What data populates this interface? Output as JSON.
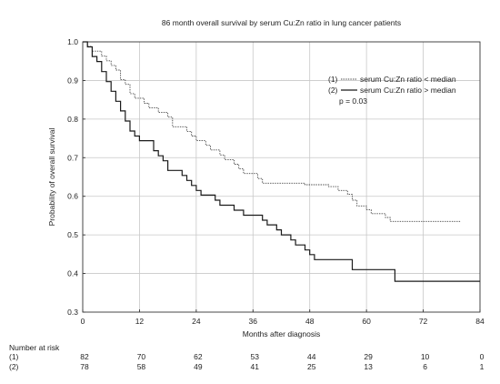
{
  "chart_data": {
    "type": "line",
    "subtype": "kaplan-meier",
    "title": "86 month overall survival by serum Cu:Zn ratio in lung cancer patients",
    "xlabel": "Months after diagnosis",
    "ylabel": "Probability of overall survival",
    "xlim": [
      0,
      84
    ],
    "ylim": [
      0.3,
      1.0
    ],
    "xticks": [
      0,
      12,
      24,
      36,
      48,
      60,
      72,
      84
    ],
    "xtick_labels": [
      "0",
      "12",
      "24",
      "36",
      "48",
      "60",
      "72",
      "84"
    ],
    "yticks": [
      0.3,
      0.4,
      0.5,
      0.6,
      0.7,
      0.8,
      0.9,
      1.0
    ],
    "ytick_labels": [
      "0.3",
      "0.4",
      "0.5",
      "0.6",
      "0.7",
      "0.8",
      "0.9",
      "1.0"
    ],
    "grid": true,
    "legend_position": "top-right",
    "p_value_text": "p = 0.03",
    "series": [
      {
        "name": "serum Cu:Zn ratio < median",
        "key": "(1)",
        "style": "dotted",
        "color": "#444444",
        "points": [
          [
            0,
            1.0
          ],
          [
            1,
            0.988
          ],
          [
            2,
            0.976
          ],
          [
            3,
            0.976
          ],
          [
            4,
            0.963
          ],
          [
            5,
            0.951
          ],
          [
            6,
            0.939
          ],
          [
            7,
            0.927
          ],
          [
            8,
            0.902
          ],
          [
            9,
            0.89
          ],
          [
            10,
            0.866
          ],
          [
            11,
            0.854
          ],
          [
            12,
            0.854
          ],
          [
            13,
            0.841
          ],
          [
            14,
            0.829
          ],
          [
            15,
            0.829
          ],
          [
            16,
            0.817
          ],
          [
            17,
            0.817
          ],
          [
            18,
            0.805
          ],
          [
            19,
            0.78
          ],
          [
            20,
            0.78
          ],
          [
            21,
            0.78
          ],
          [
            22,
            0.768
          ],
          [
            23,
            0.756
          ],
          [
            24,
            0.744
          ],
          [
            25,
            0.744
          ],
          [
            26,
            0.732
          ],
          [
            27,
            0.72
          ],
          [
            28,
            0.72
          ],
          [
            29,
            0.707
          ],
          [
            30,
            0.695
          ],
          [
            31,
            0.695
          ],
          [
            32,
            0.683
          ],
          [
            33,
            0.671
          ],
          [
            34,
            0.659
          ],
          [
            35,
            0.659
          ],
          [
            36,
            0.659
          ],
          [
            37,
            0.646
          ],
          [
            38,
            0.634
          ],
          [
            39,
            0.634
          ],
          [
            40,
            0.634
          ],
          [
            42,
            0.634
          ],
          [
            44,
            0.634
          ],
          [
            46,
            0.634
          ],
          [
            47,
            0.63
          ],
          [
            48,
            0.63
          ],
          [
            50,
            0.63
          ],
          [
            52,
            0.625
          ],
          [
            54,
            0.615
          ],
          [
            56,
            0.605
          ],
          [
            57,
            0.59
          ],
          [
            58,
            0.575
          ],
          [
            60,
            0.565
          ],
          [
            61,
            0.555
          ],
          [
            62,
            0.555
          ],
          [
            63,
            0.555
          ],
          [
            64,
            0.545
          ],
          [
            65,
            0.535
          ],
          [
            66,
            0.535
          ],
          [
            72,
            0.535
          ],
          [
            80,
            0.535
          ]
        ]
      },
      {
        "name": "serum Cu:Zn ratio > median",
        "key": "(2)",
        "style": "solid",
        "color": "#1a1a1a",
        "points": [
          [
            0,
            1.0
          ],
          [
            1,
            0.987
          ],
          [
            2,
            0.962
          ],
          [
            3,
            0.949
          ],
          [
            4,
            0.923
          ],
          [
            5,
            0.897
          ],
          [
            6,
            0.872
          ],
          [
            7,
            0.846
          ],
          [
            8,
            0.821
          ],
          [
            9,
            0.795
          ],
          [
            10,
            0.769
          ],
          [
            11,
            0.756
          ],
          [
            12,
            0.744
          ],
          [
            13,
            0.744
          ],
          [
            14,
            0.744
          ],
          [
            15,
            0.718
          ],
          [
            16,
            0.705
          ],
          [
            17,
            0.692
          ],
          [
            18,
            0.667
          ],
          [
            19,
            0.667
          ],
          [
            20,
            0.667
          ],
          [
            21,
            0.654
          ],
          [
            22,
            0.641
          ],
          [
            23,
            0.628
          ],
          [
            24,
            0.615
          ],
          [
            25,
            0.603
          ],
          [
            26,
            0.603
          ],
          [
            27,
            0.603
          ],
          [
            28,
            0.59
          ],
          [
            29,
            0.577
          ],
          [
            30,
            0.577
          ],
          [
            31,
            0.577
          ],
          [
            32,
            0.564
          ],
          [
            33,
            0.564
          ],
          [
            34,
            0.551
          ],
          [
            35,
            0.551
          ],
          [
            36,
            0.551
          ],
          [
            37,
            0.551
          ],
          [
            38,
            0.538
          ],
          [
            39,
            0.526
          ],
          [
            40,
            0.526
          ],
          [
            41,
            0.513
          ],
          [
            42,
            0.5
          ],
          [
            43,
            0.5
          ],
          [
            44,
            0.487
          ],
          [
            45,
            0.474
          ],
          [
            46,
            0.474
          ],
          [
            47,
            0.461
          ],
          [
            48,
            0.449
          ],
          [
            49,
            0.436
          ],
          [
            50,
            0.436
          ],
          [
            52,
            0.436
          ],
          [
            54,
            0.436
          ],
          [
            56,
            0.436
          ],
          [
            57,
            0.41
          ],
          [
            58,
            0.41
          ],
          [
            60,
            0.41
          ],
          [
            64,
            0.41
          ],
          [
            66,
            0.38
          ],
          [
            72,
            0.38
          ],
          [
            84,
            0.38
          ]
        ]
      }
    ],
    "number_at_risk": {
      "label": "Number at risk",
      "times": [
        "0",
        "12",
        "24",
        "36",
        "48",
        "60",
        "72",
        "84"
      ],
      "rows": [
        {
          "label": "(1)",
          "values": [
            "82",
            "70",
            "62",
            "53",
            "44",
            "29",
            "10",
            "0"
          ]
        },
        {
          "label": "(2)",
          "values": [
            "78",
            "58",
            "49",
            "41",
            "25",
            "13",
            "6",
            "1"
          ]
        }
      ]
    }
  }
}
